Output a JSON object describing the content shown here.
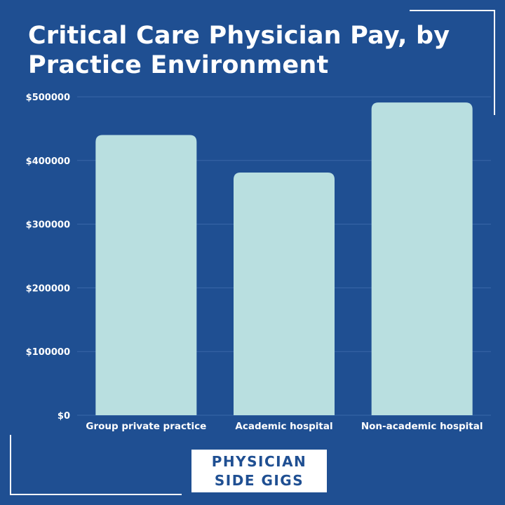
{
  "title": "Critical Care Physician Pay, by Practice Environment",
  "colors": {
    "background": "#1f4f92",
    "bar": "#b9dfe0",
    "grid": "#3a67a8",
    "text": "#ffffff"
  },
  "logo": {
    "line1": "PHYSICIAN",
    "line2": "SIDE GIGS"
  },
  "chart_data": {
    "type": "bar",
    "title": "Critical Care Physician Pay, by Practice Environment",
    "categories": [
      "Group private practice",
      "Academic hospital",
      "Non-academic hospital"
    ],
    "values": [
      440000,
      381000,
      491000
    ],
    "ylim": [
      0,
      500000
    ],
    "yticks": [
      0,
      100000,
      200000,
      300000,
      400000,
      500000
    ],
    "ytick_labels": [
      "$0",
      "$100000",
      "$200000",
      "$300000",
      "$400000",
      "$500000"
    ],
    "xlabel": "",
    "ylabel": "",
    "grid": true,
    "legend": "none"
  }
}
